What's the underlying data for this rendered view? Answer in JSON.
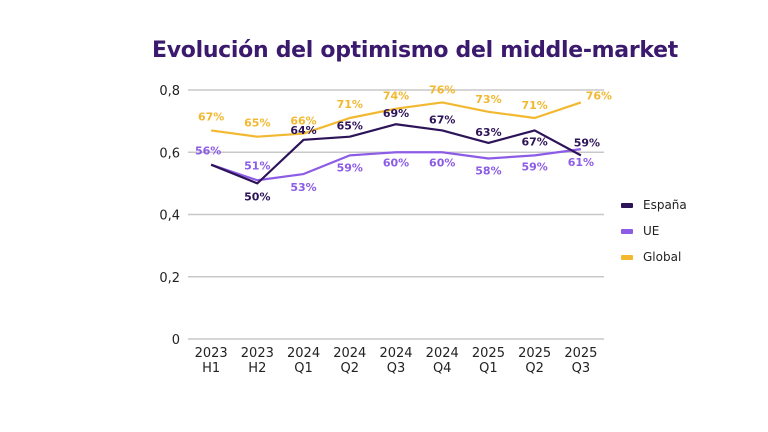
{
  "chart_data": {
    "type": "line",
    "title": "Evolución del optimismo del middle-market",
    "xlabel": "",
    "ylabel": "",
    "ylim": [
      0,
      0.8
    ],
    "yticks": [
      "0",
      "0,2",
      "0,4",
      "0,6",
      "0,8"
    ],
    "ytick_values": [
      0,
      0.2,
      0.4,
      0.6,
      0.8
    ],
    "grid": true,
    "legend_position": "right",
    "categories": [
      [
        "2023",
        "H1"
      ],
      [
        "2023",
        "H2"
      ],
      [
        "2024",
        "Q1"
      ],
      [
        "2024",
        "Q2"
      ],
      [
        "2024",
        "Q3"
      ],
      [
        "2024",
        "Q4"
      ],
      [
        "2025",
        "Q1"
      ],
      [
        "2025",
        "Q2"
      ],
      [
        "2025",
        "Q3"
      ]
    ],
    "series": [
      {
        "name": "España",
        "color": "#2d1458",
        "values": [
          0.56,
          0.5,
          0.64,
          0.65,
          0.69,
          0.67,
          0.63,
          0.67,
          0.59
        ],
        "labels": [
          "",
          "50%",
          "64%",
          "65%",
          "69%",
          "67%",
          "63%",
          "67%",
          "59%"
        ]
      },
      {
        "name": "UE",
        "color": "#8c5ce6",
        "values": [
          0.56,
          0.51,
          0.53,
          0.59,
          0.6,
          0.6,
          0.58,
          0.59,
          0.61
        ],
        "labels": [
          "56%",
          "51%",
          "53%",
          "59%",
          "60%",
          "60%",
          "58%",
          "59%",
          "61%"
        ]
      },
      {
        "name": "Global",
        "color": "#f2b830",
        "values": [
          0.67,
          0.65,
          0.66,
          0.71,
          0.74,
          0.76,
          0.73,
          0.71,
          0.76
        ],
        "labels": [
          "67%",
          "65%",
          "66%",
          "71%",
          "74%",
          "76%",
          "73%",
          "71%",
          "76%"
        ]
      }
    ]
  }
}
